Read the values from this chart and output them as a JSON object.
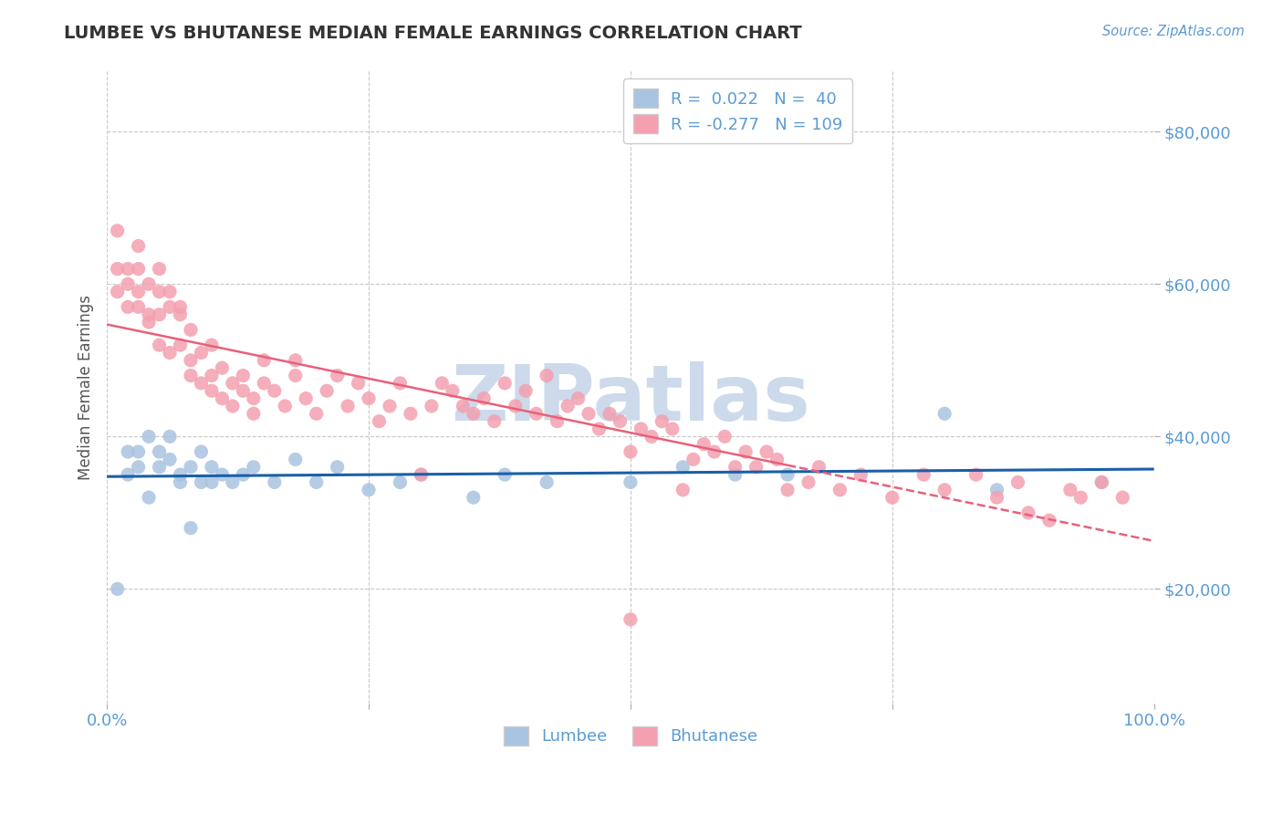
{
  "title": "LUMBEE VS BHUTANESE MEDIAN FEMALE EARNINGS CORRELATION CHART",
  "source_text": "Source: ZipAtlas.com",
  "ylabel": "Median Female Earnings",
  "xlim": [
    0.0,
    1.0
  ],
  "ylim": [
    5000,
    88000
  ],
  "yticks": [
    20000,
    40000,
    60000,
    80000
  ],
  "ytick_labels": [
    "$20,000",
    "$40,000",
    "$60,000",
    "$80,000"
  ],
  "legend_r1": "R =  0.022",
  "legend_n1": "N =  40",
  "legend_r2": "R = -0.277",
  "legend_n2": "N = 109",
  "lumbee_color": "#a8c4e0",
  "bhutanese_color": "#f4a0b0",
  "lumbee_line_color": "#1a5fa8",
  "bhutanese_line_color": "#e8607a",
  "title_color": "#333333",
  "axis_color": "#5b9bd5",
  "watermark_color": "#ccdaeb",
  "background_color": "#ffffff",
  "grid_color": "#c8c8c8",
  "lumbee_scatter_x": [
    0.01,
    0.02,
    0.02,
    0.03,
    0.03,
    0.04,
    0.04,
    0.05,
    0.05,
    0.06,
    0.06,
    0.07,
    0.07,
    0.08,
    0.08,
    0.09,
    0.09,
    0.1,
    0.1,
    0.11,
    0.12,
    0.13,
    0.14,
    0.16,
    0.18,
    0.2,
    0.22,
    0.25,
    0.28,
    0.3,
    0.35,
    0.38,
    0.42,
    0.5,
    0.55,
    0.6,
    0.65,
    0.8,
    0.85,
    0.95
  ],
  "lumbee_scatter_y": [
    20000,
    35000,
    38000,
    36000,
    38000,
    32000,
    40000,
    36000,
    38000,
    37000,
    40000,
    35000,
    34000,
    36000,
    28000,
    34000,
    38000,
    34000,
    36000,
    35000,
    34000,
    35000,
    36000,
    34000,
    37000,
    34000,
    36000,
    33000,
    34000,
    35000,
    32000,
    35000,
    34000,
    34000,
    36000,
    35000,
    35000,
    43000,
    33000,
    34000
  ],
  "bhutanese_scatter_x": [
    0.01,
    0.01,
    0.01,
    0.02,
    0.02,
    0.02,
    0.03,
    0.03,
    0.03,
    0.03,
    0.04,
    0.04,
    0.04,
    0.05,
    0.05,
    0.05,
    0.05,
    0.06,
    0.06,
    0.06,
    0.07,
    0.07,
    0.07,
    0.08,
    0.08,
    0.08,
    0.09,
    0.09,
    0.1,
    0.1,
    0.1,
    0.11,
    0.11,
    0.12,
    0.12,
    0.13,
    0.13,
    0.14,
    0.14,
    0.15,
    0.15,
    0.16,
    0.17,
    0.18,
    0.18,
    0.19,
    0.2,
    0.21,
    0.22,
    0.23,
    0.24,
    0.25,
    0.26,
    0.27,
    0.28,
    0.29,
    0.3,
    0.31,
    0.32,
    0.33,
    0.34,
    0.35,
    0.36,
    0.37,
    0.38,
    0.39,
    0.4,
    0.41,
    0.42,
    0.43,
    0.44,
    0.45,
    0.46,
    0.47,
    0.48,
    0.49,
    0.5,
    0.51,
    0.52,
    0.53,
    0.54,
    0.55,
    0.56,
    0.57,
    0.58,
    0.59,
    0.6,
    0.61,
    0.62,
    0.63,
    0.64,
    0.65,
    0.67,
    0.68,
    0.7,
    0.72,
    0.75,
    0.78,
    0.8,
    0.83,
    0.85,
    0.87,
    0.88,
    0.9,
    0.92,
    0.93,
    0.95,
    0.97,
    0.5
  ],
  "bhutanese_scatter_y": [
    59000,
    62000,
    67000,
    57000,
    60000,
    62000,
    59000,
    57000,
    62000,
    65000,
    56000,
    60000,
    55000,
    59000,
    62000,
    52000,
    56000,
    59000,
    57000,
    51000,
    56000,
    52000,
    57000,
    50000,
    48000,
    54000,
    47000,
    51000,
    48000,
    46000,
    52000,
    49000,
    45000,
    47000,
    44000,
    46000,
    48000,
    45000,
    43000,
    50000,
    47000,
    46000,
    44000,
    48000,
    50000,
    45000,
    43000,
    46000,
    48000,
    44000,
    47000,
    45000,
    42000,
    44000,
    47000,
    43000,
    35000,
    44000,
    47000,
    46000,
    44000,
    43000,
    45000,
    42000,
    47000,
    44000,
    46000,
    43000,
    48000,
    42000,
    44000,
    45000,
    43000,
    41000,
    43000,
    42000,
    38000,
    41000,
    40000,
    42000,
    41000,
    33000,
    37000,
    39000,
    38000,
    40000,
    36000,
    38000,
    36000,
    38000,
    37000,
    33000,
    34000,
    36000,
    33000,
    35000,
    32000,
    35000,
    33000,
    35000,
    32000,
    34000,
    30000,
    29000,
    33000,
    32000,
    34000,
    32000,
    16000
  ]
}
